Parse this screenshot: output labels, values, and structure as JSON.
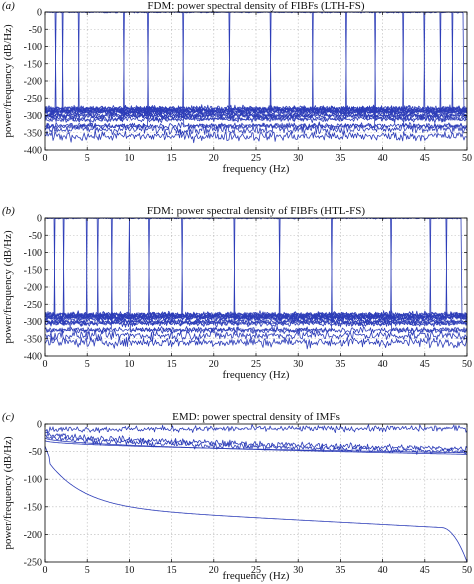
{
  "chart_data": [
    {
      "panel_label": "(a)",
      "type": "line",
      "title": "FDM: power spectral density of FIBFs (LTH-FS)",
      "xlabel": "frequency (Hz)",
      "ylabel": "power/frequency (dB/Hz)",
      "xlim": [
        0,
        50
      ],
      "ylim": [
        -400,
        0
      ],
      "xticks": [
        0,
        5,
        10,
        15,
        20,
        25,
        30,
        35,
        40,
        45,
        50
      ],
      "yticks": [
        0,
        -50,
        -100,
        -150,
        -200,
        -250,
        -300,
        -350,
        -400
      ],
      "grid": true,
      "line_color": "#2d3db8",
      "bands_hz": [
        0,
        1.2,
        2.1,
        4.0,
        9.3,
        12.2,
        16.4,
        21.8,
        26.7,
        31.7,
        35.6,
        39.1,
        42.4,
        44.9,
        46.8,
        48.3,
        49.6
      ],
      "spike_level_db": 0,
      "noise_floor_db": [
        -280,
        -285,
        -290,
        -300,
        -310,
        -330
      ],
      "lower_traces_db": [
        -340,
        -360
      ]
    },
    {
      "panel_label": "(b)",
      "type": "line",
      "title": "FDM: power spectral density of FIBFs (HTL-FS)",
      "xlabel": "frequency (Hz)",
      "ylabel": "power/frequency (dB/Hz)",
      "xlim": [
        0,
        50
      ],
      "ylim": [
        -400,
        0
      ],
      "xticks": [
        0,
        5,
        10,
        15,
        20,
        25,
        30,
        35,
        40,
        45,
        50
      ],
      "yticks": [
        0,
        -50,
        -100,
        -150,
        -200,
        -250,
        -300,
        -350,
        -400
      ],
      "grid": true,
      "line_color": "#2d3db8",
      "bands_hz": [
        0,
        1.1,
        2.2,
        4.9,
        6.3,
        7.9,
        10.0,
        12.3,
        16.3,
        22.4,
        27.8,
        34.0,
        41.0,
        45.6,
        47.6,
        49.3
      ],
      "spike_level_db": 0,
      "noise_floor_db": [
        -280,
        -285,
        -290,
        -300,
        -305,
        -325
      ],
      "lower_traces_db": [
        -340,
        -360
      ]
    },
    {
      "panel_label": "(c)",
      "type": "line",
      "title": "EMD: power spectral density of IMFs",
      "xlabel": "frequency (Hz)",
      "ylabel": "power/frequency (dB/Hz)",
      "xlim": [
        0,
        50
      ],
      "ylim": [
        -250,
        0
      ],
      "xticks": [
        0,
        5,
        10,
        15,
        20,
        25,
        30,
        35,
        40,
        45,
        50
      ],
      "yticks": [
        0,
        -50,
        -100,
        -150,
        -200,
        -250
      ],
      "grid": true,
      "line_color": "#2d3db8",
      "series_descriptions": [
        {
          "start_db": -10,
          "end_db": -8,
          "noisy": true
        },
        {
          "start_db": -15,
          "end_db": -45,
          "noisy": true
        },
        {
          "start_db": -20,
          "end_db": -50,
          "noisy": true
        },
        {
          "start_db": -25,
          "end_db": -55,
          "noisy": false
        },
        {
          "start_db": -30,
          "end_db": -52,
          "noisy": false
        },
        {
          "start_db": -60,
          "end_db": -250,
          "noisy": false
        }
      ]
    }
  ]
}
